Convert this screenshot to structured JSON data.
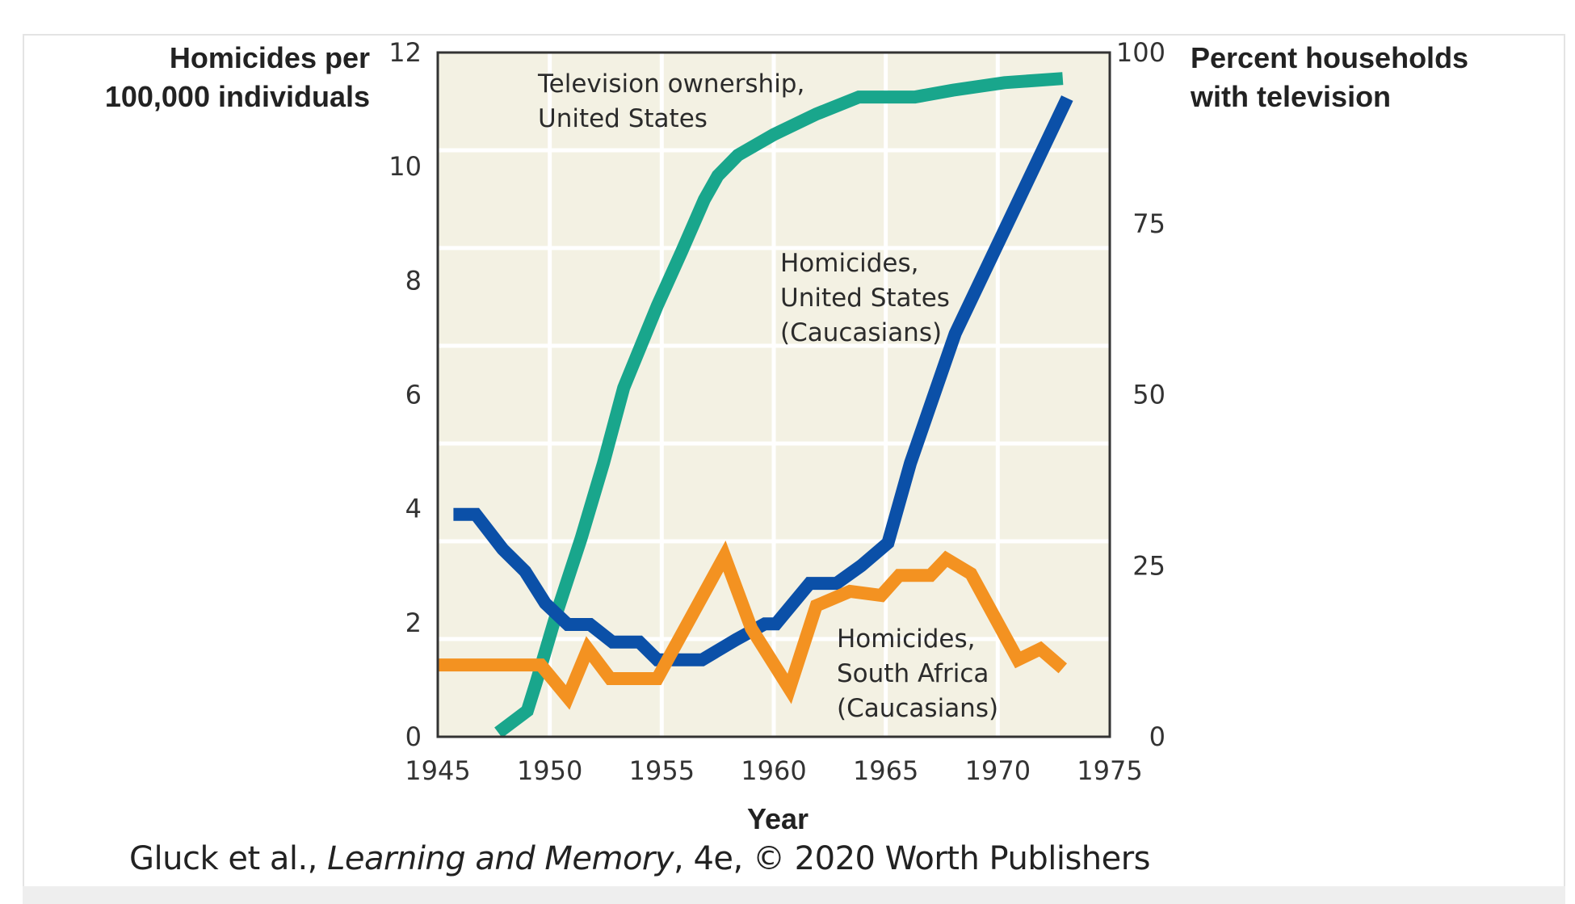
{
  "caption": {
    "authors": "Gluck et al., ",
    "book_title": "Learning and Memory",
    "rest": ", 4e, © 2020 Worth Publishers"
  },
  "chart_data": {
    "type": "line",
    "title": "",
    "xlabel": "Year",
    "ylabel_left": [
      "Homicides per",
      "100,000 individuals"
    ],
    "ylabel_right": [
      "Percent households",
      "with television"
    ],
    "xlim": [
      1945,
      1975
    ],
    "ylim_left": [
      0,
      12
    ],
    "ylim_right": [
      0,
      100
    ],
    "x_ticks": [
      "1945",
      "1950",
      "1955",
      "1960",
      "1965",
      "1970",
      "1975"
    ],
    "y_ticks_left": [
      "0",
      "2",
      "4",
      "6",
      "8",
      "10",
      "12"
    ],
    "y_ticks_right": [
      "0",
      "25",
      "50",
      "75",
      "100"
    ],
    "grid": true,
    "colors": {
      "plot_background": "#f3f1e3",
      "grid": "#ffffff",
      "axis": "#333333"
    },
    "series": [
      {
        "name": "Television ownership, United States",
        "label_lines": [
          "Television ownership,",
          "United States"
        ],
        "axis": "right",
        "color": "#19a68c",
        "points": [
          [
            1947.7,
            0.6
          ],
          [
            1949.0,
            3.8
          ],
          [
            1949.4,
            8.0
          ],
          [
            1950.3,
            18.0
          ],
          [
            1951.4,
            29.0
          ],
          [
            1952.4,
            40.0
          ],
          [
            1953.3,
            51.0
          ],
          [
            1954.3,
            59.0
          ],
          [
            1954.8,
            63.0
          ],
          [
            1955.9,
            71.0
          ],
          [
            1956.9,
            78.5
          ],
          [
            1957.5,
            82.0
          ],
          [
            1958.4,
            85.0
          ],
          [
            1960.0,
            88.0
          ],
          [
            1961.9,
            91.0
          ],
          [
            1963.8,
            93.5
          ],
          [
            1966.3,
            93.5
          ],
          [
            1968.0,
            94.5
          ],
          [
            1970.3,
            95.6
          ],
          [
            1972.9,
            96.2
          ]
        ]
      },
      {
        "name": "Homicides, United States (Caucasians)",
        "label_lines": [
          "Homicides,",
          "United States",
          "(Caucasians)"
        ],
        "axis": "left",
        "color": "#0b50a8",
        "points": [
          [
            1945.7,
            3.9
          ],
          [
            1946.7,
            3.9
          ],
          [
            1947.9,
            3.29
          ],
          [
            1948.9,
            2.9
          ],
          [
            1949.8,
            2.34
          ],
          [
            1950.8,
            1.97
          ],
          [
            1951.8,
            1.97
          ],
          [
            1952.8,
            1.66
          ],
          [
            1954.0,
            1.66
          ],
          [
            1954.8,
            1.35
          ],
          [
            1956.8,
            1.35
          ],
          [
            1958.3,
            1.7
          ],
          [
            1959.6,
            1.98
          ],
          [
            1960.1,
            1.98
          ],
          [
            1961.6,
            2.69
          ],
          [
            1962.8,
            2.69
          ],
          [
            1963.9,
            3.0
          ],
          [
            1965.1,
            3.4
          ],
          [
            1966.1,
            4.8
          ],
          [
            1968.1,
            7.07
          ],
          [
            1973.1,
            11.2
          ]
        ]
      },
      {
        "name": "Homicides, South Africa (Caucasians)",
        "label_lines": [
          "Homicides,",
          "South Africa",
          "(Caucasians)"
        ],
        "axis": "left",
        "color": "#f39221",
        "points": [
          [
            1945.0,
            1.26
          ],
          [
            1949.6,
            1.26
          ],
          [
            1950.8,
            0.69
          ],
          [
            1951.7,
            1.54
          ],
          [
            1952.7,
            1.02
          ],
          [
            1954.8,
            1.02
          ],
          [
            1957.8,
            3.17
          ],
          [
            1959.0,
            1.9
          ],
          [
            1960.7,
            0.84
          ],
          [
            1961.9,
            2.3
          ],
          [
            1963.4,
            2.55
          ],
          [
            1964.8,
            2.48
          ],
          [
            1965.6,
            2.83
          ],
          [
            1967.0,
            2.83
          ],
          [
            1967.7,
            3.12
          ],
          [
            1968.8,
            2.86
          ],
          [
            1970.9,
            1.35
          ],
          [
            1971.9,
            1.54
          ],
          [
            1972.9,
            1.2
          ]
        ]
      }
    ]
  }
}
